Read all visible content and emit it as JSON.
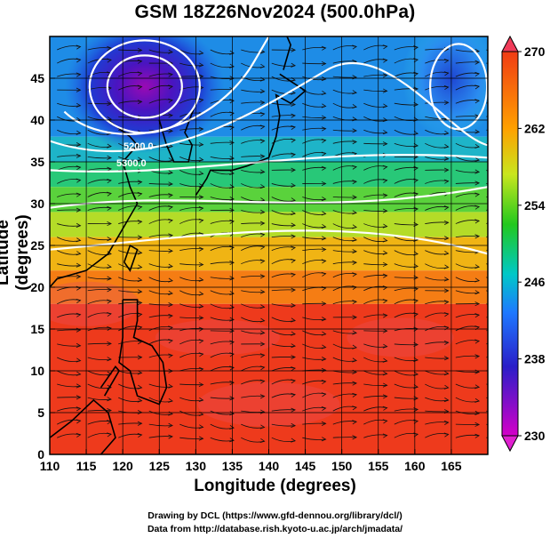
{
  "title": "GSM 18Z26Nov2024 (500.0hPa)",
  "xlabel": "Longitude (degrees)",
  "ylabel": "Latitude  (degrees)",
  "x_ticks": [
    "110",
    "115",
    "120",
    "125",
    "130",
    "135",
    "140",
    "145",
    "150",
    "155",
    "160",
    "165"
  ],
  "y_ticks": [
    "0",
    "5",
    "10",
    "15",
    "20",
    "25",
    "30",
    "35",
    "40",
    "45"
  ],
  "colorbar": {
    "ticks": [
      "230",
      "238",
      "246",
      "254",
      "262",
      "270"
    ],
    "min": 230,
    "max": 270
  },
  "contour_labels": [
    "5200.0",
    "5300.0"
  ],
  "credit_line1": "Drawing by DCL (https://www.gfd-dennou.org/library/dcl/)",
  "credit_line2": "Data from http://database.rish.kyoto-u.ac.jp/arch/jmadata/",
  "chart_data": {
    "type": "heatmap",
    "x_range": [
      110,
      170
    ],
    "y_range": [
      0,
      50
    ],
    "color_range": [
      230,
      270
    ],
    "field": "temperature (K) at 500.0hPa with streamlines and geopotential height contours",
    "features": [
      {
        "name": "cold low",
        "lon": 123,
        "lat": 44,
        "value": 234
      },
      {
        "name": "cold low",
        "lon": 165,
        "lat": 45,
        "value": 244
      }
    ]
  }
}
